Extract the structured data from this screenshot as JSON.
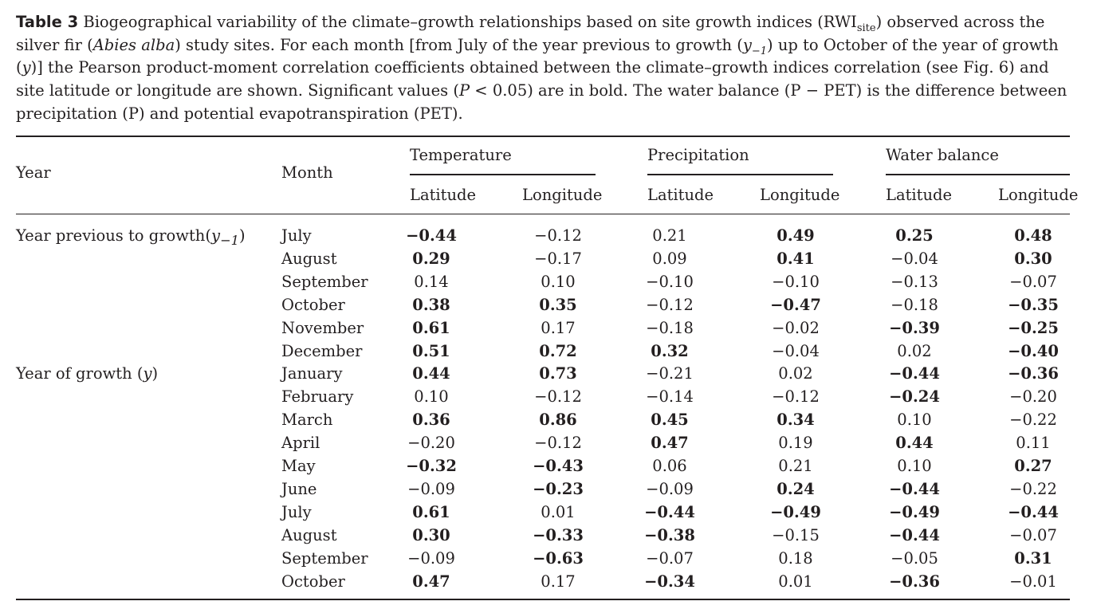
{
  "caption": {
    "label": "Table 3",
    "segments": [
      {
        "t": " Biogeographical variability of the climate–growth relationships based on site growth indices (RWI"
      },
      {
        "t": "site",
        "sub": true
      },
      {
        "t": ") observed across the silver fir ("
      },
      {
        "t": "Abies alba",
        "i": true
      },
      {
        "t": ") study sites. For each month [from July of the year previous to growth ("
      },
      {
        "t": "y",
        "i": true
      },
      {
        "t": "−1",
        "sub": true,
        "i": true
      },
      {
        "t": ") up to October of the year of growth ("
      },
      {
        "t": "y",
        "i": true
      },
      {
        "t": ")] the Pearson product-moment correlation coefficients obtained between the climate–growth indices correlation (see Fig. 6) and site latitude or longitude are shown. Significant values ("
      },
      {
        "t": "P",
        "i": true
      },
      {
        "t": " < 0.05) are in bold. The water balance (P − PET) is the difference between precipitation (P) and potential evapotranspiration (PET)."
      }
    ]
  },
  "headers": {
    "year": "Year",
    "month": "Month",
    "groups": [
      "Temperature",
      "Precipitation",
      "Water balance"
    ],
    "sub": [
      "Latitude",
      "Longitude",
      "Latitude",
      "Longitude",
      "Latitude",
      "Longitude"
    ]
  },
  "year_labels": [
    {
      "row": 0,
      "segments": [
        {
          "t": "Year previous to growth("
        },
        {
          "t": "y",
          "i": true
        },
        {
          "t": "−1",
          "sub": true,
          "i": true
        },
        {
          "t": ")"
        }
      ]
    },
    {
      "row": 6,
      "segments": [
        {
          "t": "Year of growth ("
        },
        {
          "t": "y",
          "i": true
        },
        {
          "t": ")"
        }
      ]
    }
  ],
  "chart_data": {
    "type": "table",
    "columns": [
      "Temperature Latitude",
      "Temperature Longitude",
      "Precipitation Latitude",
      "Precipitation Longitude",
      "Water balance Latitude",
      "Water balance Longitude"
    ],
    "rows": [
      {
        "month": "July",
        "values": [
          "−0.44",
          "−0.12",
          "0.21",
          "0.49",
          "0.25",
          "0.48"
        ],
        "bold": [
          1,
          0,
          0,
          1,
          1,
          1
        ]
      },
      {
        "month": "August",
        "values": [
          "0.29",
          "−0.17",
          "0.09",
          "0.41",
          "−0.04",
          "0.30"
        ],
        "bold": [
          1,
          0,
          0,
          1,
          0,
          1
        ]
      },
      {
        "month": "September",
        "values": [
          "0.14",
          "0.10",
          "−0.10",
          "−0.10",
          "−0.13",
          "−0.07"
        ],
        "bold": [
          0,
          0,
          0,
          0,
          0,
          0
        ]
      },
      {
        "month": "October",
        "values": [
          "0.38",
          "0.35",
          "−0.12",
          "−0.47",
          "−0.18",
          "−0.35"
        ],
        "bold": [
          1,
          1,
          0,
          1,
          0,
          1
        ]
      },
      {
        "month": "November",
        "values": [
          "0.61",
          "0.17",
          "−0.18",
          "−0.02",
          "−0.39",
          "−0.25"
        ],
        "bold": [
          1,
          0,
          0,
          0,
          1,
          1
        ]
      },
      {
        "month": "December",
        "values": [
          "0.51",
          "0.72",
          "0.32",
          "−0.04",
          "0.02",
          "−0.40"
        ],
        "bold": [
          1,
          1,
          1,
          0,
          0,
          1
        ]
      },
      {
        "month": "January",
        "values": [
          "0.44",
          "0.73",
          "−0.21",
          "0.02",
          "−0.44",
          "−0.36"
        ],
        "bold": [
          1,
          1,
          0,
          0,
          1,
          1
        ]
      },
      {
        "month": "February",
        "values": [
          "0.10",
          "−0.12",
          "−0.14",
          "−0.12",
          "−0.24",
          "−0.20"
        ],
        "bold": [
          0,
          0,
          0,
          0,
          1,
          0
        ]
      },
      {
        "month": "March",
        "values": [
          "0.36",
          "0.86",
          "0.45",
          "0.34",
          "0.10",
          "−0.22"
        ],
        "bold": [
          1,
          1,
          1,
          1,
          0,
          0
        ]
      },
      {
        "month": "April",
        "values": [
          "−0.20",
          "−0.12",
          "0.47",
          "0.19",
          "0.44",
          "0.11"
        ],
        "bold": [
          0,
          0,
          1,
          0,
          1,
          0
        ]
      },
      {
        "month": "May",
        "values": [
          "−0.32",
          "−0.43",
          "0.06",
          "0.21",
          "0.10",
          "0.27"
        ],
        "bold": [
          1,
          1,
          0,
          0,
          0,
          1
        ]
      },
      {
        "month": "June",
        "values": [
          "−0.09",
          "−0.23",
          "−0.09",
          "0.24",
          "−0.44",
          "−0.22"
        ],
        "bold": [
          0,
          1,
          0,
          1,
          1,
          0
        ]
      },
      {
        "month": "July",
        "values": [
          "0.61",
          "0.01",
          "−0.44",
          "−0.49",
          "−0.49",
          "−0.44"
        ],
        "bold": [
          1,
          0,
          1,
          1,
          1,
          1
        ]
      },
      {
        "month": "August",
        "values": [
          "0.30",
          "−0.33",
          "−0.38",
          "−0.15",
          "−0.44",
          "−0.07"
        ],
        "bold": [
          1,
          1,
          1,
          0,
          1,
          0
        ]
      },
      {
        "month": "September",
        "values": [
          "−0.09",
          "−0.63",
          "−0.07",
          "0.18",
          "−0.05",
          "0.31"
        ],
        "bold": [
          0,
          1,
          0,
          0,
          0,
          1
        ]
      },
      {
        "month": "October",
        "values": [
          "0.47",
          "0.17",
          "−0.34",
          "0.01",
          "−0.36",
          "−0.01"
        ],
        "bold": [
          1,
          0,
          1,
          0,
          1,
          0
        ]
      }
    ]
  }
}
